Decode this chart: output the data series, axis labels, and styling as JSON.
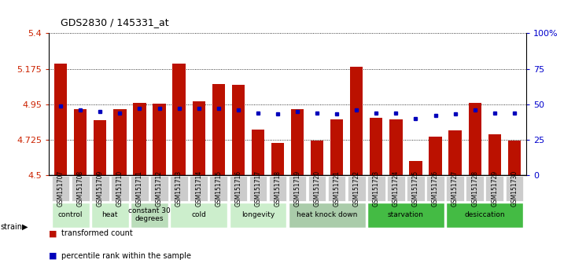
{
  "title": "GDS2830 / 145331_at",
  "bar_color": "#bb1100",
  "dot_color": "#0000bb",
  "ylim": [
    4.5,
    5.4
  ],
  "yticks": [
    4.5,
    4.725,
    4.95,
    5.175,
    5.4
  ],
  "ytick_labels": [
    "4.5",
    "4.725",
    "4.95",
    "5.175",
    "5.4"
  ],
  "y2lim": [
    0,
    100
  ],
  "y2ticks": [
    0,
    25,
    50,
    75,
    100
  ],
  "y2tick_labels": [
    "0",
    "25",
    "50",
    "75",
    "100%"
  ],
  "samples": [
    "GSM151707",
    "GSM151708",
    "GSM151709",
    "GSM151710",
    "GSM151711",
    "GSM151712",
    "GSM151713",
    "GSM151714",
    "GSM151715",
    "GSM151716",
    "GSM151717",
    "GSM151718",
    "GSM151719",
    "GSM151720",
    "GSM151721",
    "GSM151722",
    "GSM151723",
    "GSM151724",
    "GSM151725",
    "GSM151726",
    "GSM151727",
    "GSM151728",
    "GSM151729",
    "GSM151730"
  ],
  "bar_values": [
    5.21,
    4.92,
    4.85,
    4.92,
    4.96,
    4.955,
    5.21,
    4.97,
    5.08,
    5.075,
    4.79,
    4.705,
    4.92,
    4.72,
    4.855,
    5.19,
    4.865,
    4.855,
    4.59,
    4.745,
    4.785,
    4.96,
    4.76,
    4.72
  ],
  "dot_values": [
    49,
    46,
    45,
    44,
    47,
    47,
    47,
    47,
    47,
    46,
    44,
    43,
    45,
    44,
    43,
    46,
    44,
    44,
    40,
    42,
    43,
    46,
    44,
    44
  ],
  "groups": [
    {
      "label": "control",
      "start": 0,
      "end": 2,
      "color": "#cceecc"
    },
    {
      "label": "heat",
      "start": 2,
      "end": 4,
      "color": "#cceecc"
    },
    {
      "label": "constant 30\ndegrees",
      "start": 4,
      "end": 6,
      "color": "#bbddbb"
    },
    {
      "label": "cold",
      "start": 6,
      "end": 9,
      "color": "#cceecc"
    },
    {
      "label": "longevity",
      "start": 9,
      "end": 12,
      "color": "#cceecc"
    },
    {
      "label": "heat knock down",
      "start": 12,
      "end": 16,
      "color": "#aaccaa"
    },
    {
      "label": "starvation",
      "start": 16,
      "end": 20,
      "color": "#44bb44"
    },
    {
      "label": "desiccation",
      "start": 20,
      "end": 24,
      "color": "#44bb44"
    }
  ],
  "legend_bar_label": "transformed count",
  "legend_dot_label": "percentile rank within the sample",
  "strain_label": "strain",
  "tick_bg_color": "#cccccc",
  "axis_color": "#cc2200",
  "axis2_color": "#0000cc"
}
